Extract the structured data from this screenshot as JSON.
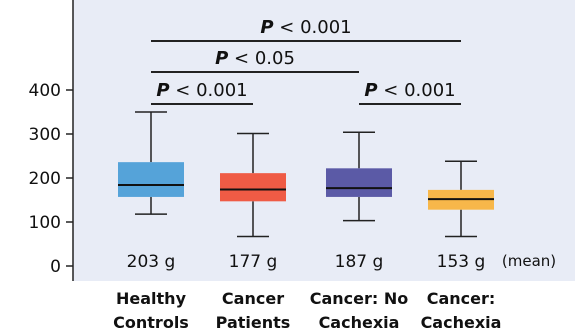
{
  "chart_data": {
    "type": "box",
    "ylim": [
      0,
      500
    ],
    "yticks": [
      0,
      100,
      200,
      300,
      400
    ],
    "ytick_labels": [
      "0",
      "100",
      "200",
      "300",
      "400"
    ],
    "grid": false,
    "background": "#e8ecf6",
    "groups": [
      {
        "label_line1": "Healthy",
        "label_line2": "Controls",
        "color": "#55a3d9",
        "whisker_low": 118,
        "q1": 157,
        "median": 184,
        "q3": 236,
        "whisker_high": 350,
        "mean_label": "203 g"
      },
      {
        "label_line1": "Cancer",
        "label_line2": "Patients",
        "color": "#ef5b45",
        "whisker_low": 67,
        "q1": 147,
        "median": 174,
        "q3": 211,
        "whisker_high": 301,
        "mean_label": "177 g"
      },
      {
        "label_line1": "Cancer: No",
        "label_line2": "Cachexia",
        "color": "#5b5aa6",
        "whisker_low": 103,
        "q1": 157,
        "median": 177,
        "q3": 222,
        "whisker_high": 304,
        "mean_label": "187 g"
      },
      {
        "label_line1": "Cancer:",
        "label_line2": "Cachexia",
        "color": "#f7b74a",
        "whisker_low": 67,
        "q1": 128,
        "median": 152,
        "q3": 173,
        "whisker_high": 238,
        "mean_label": "153 g"
      }
    ],
    "mean_suffix": "(mean)",
    "significance": [
      {
        "from": 0,
        "to": 3,
        "level": 1,
        "text": "P < 0.001"
      },
      {
        "from": 0,
        "to": 2,
        "level": 2,
        "text": "P < 0.05"
      },
      {
        "from": 0,
        "to": 1,
        "level": 3,
        "text": "P < 0.001"
      },
      {
        "from": 2,
        "to": 3,
        "level": 3,
        "text": "P < 0.001"
      }
    ]
  }
}
